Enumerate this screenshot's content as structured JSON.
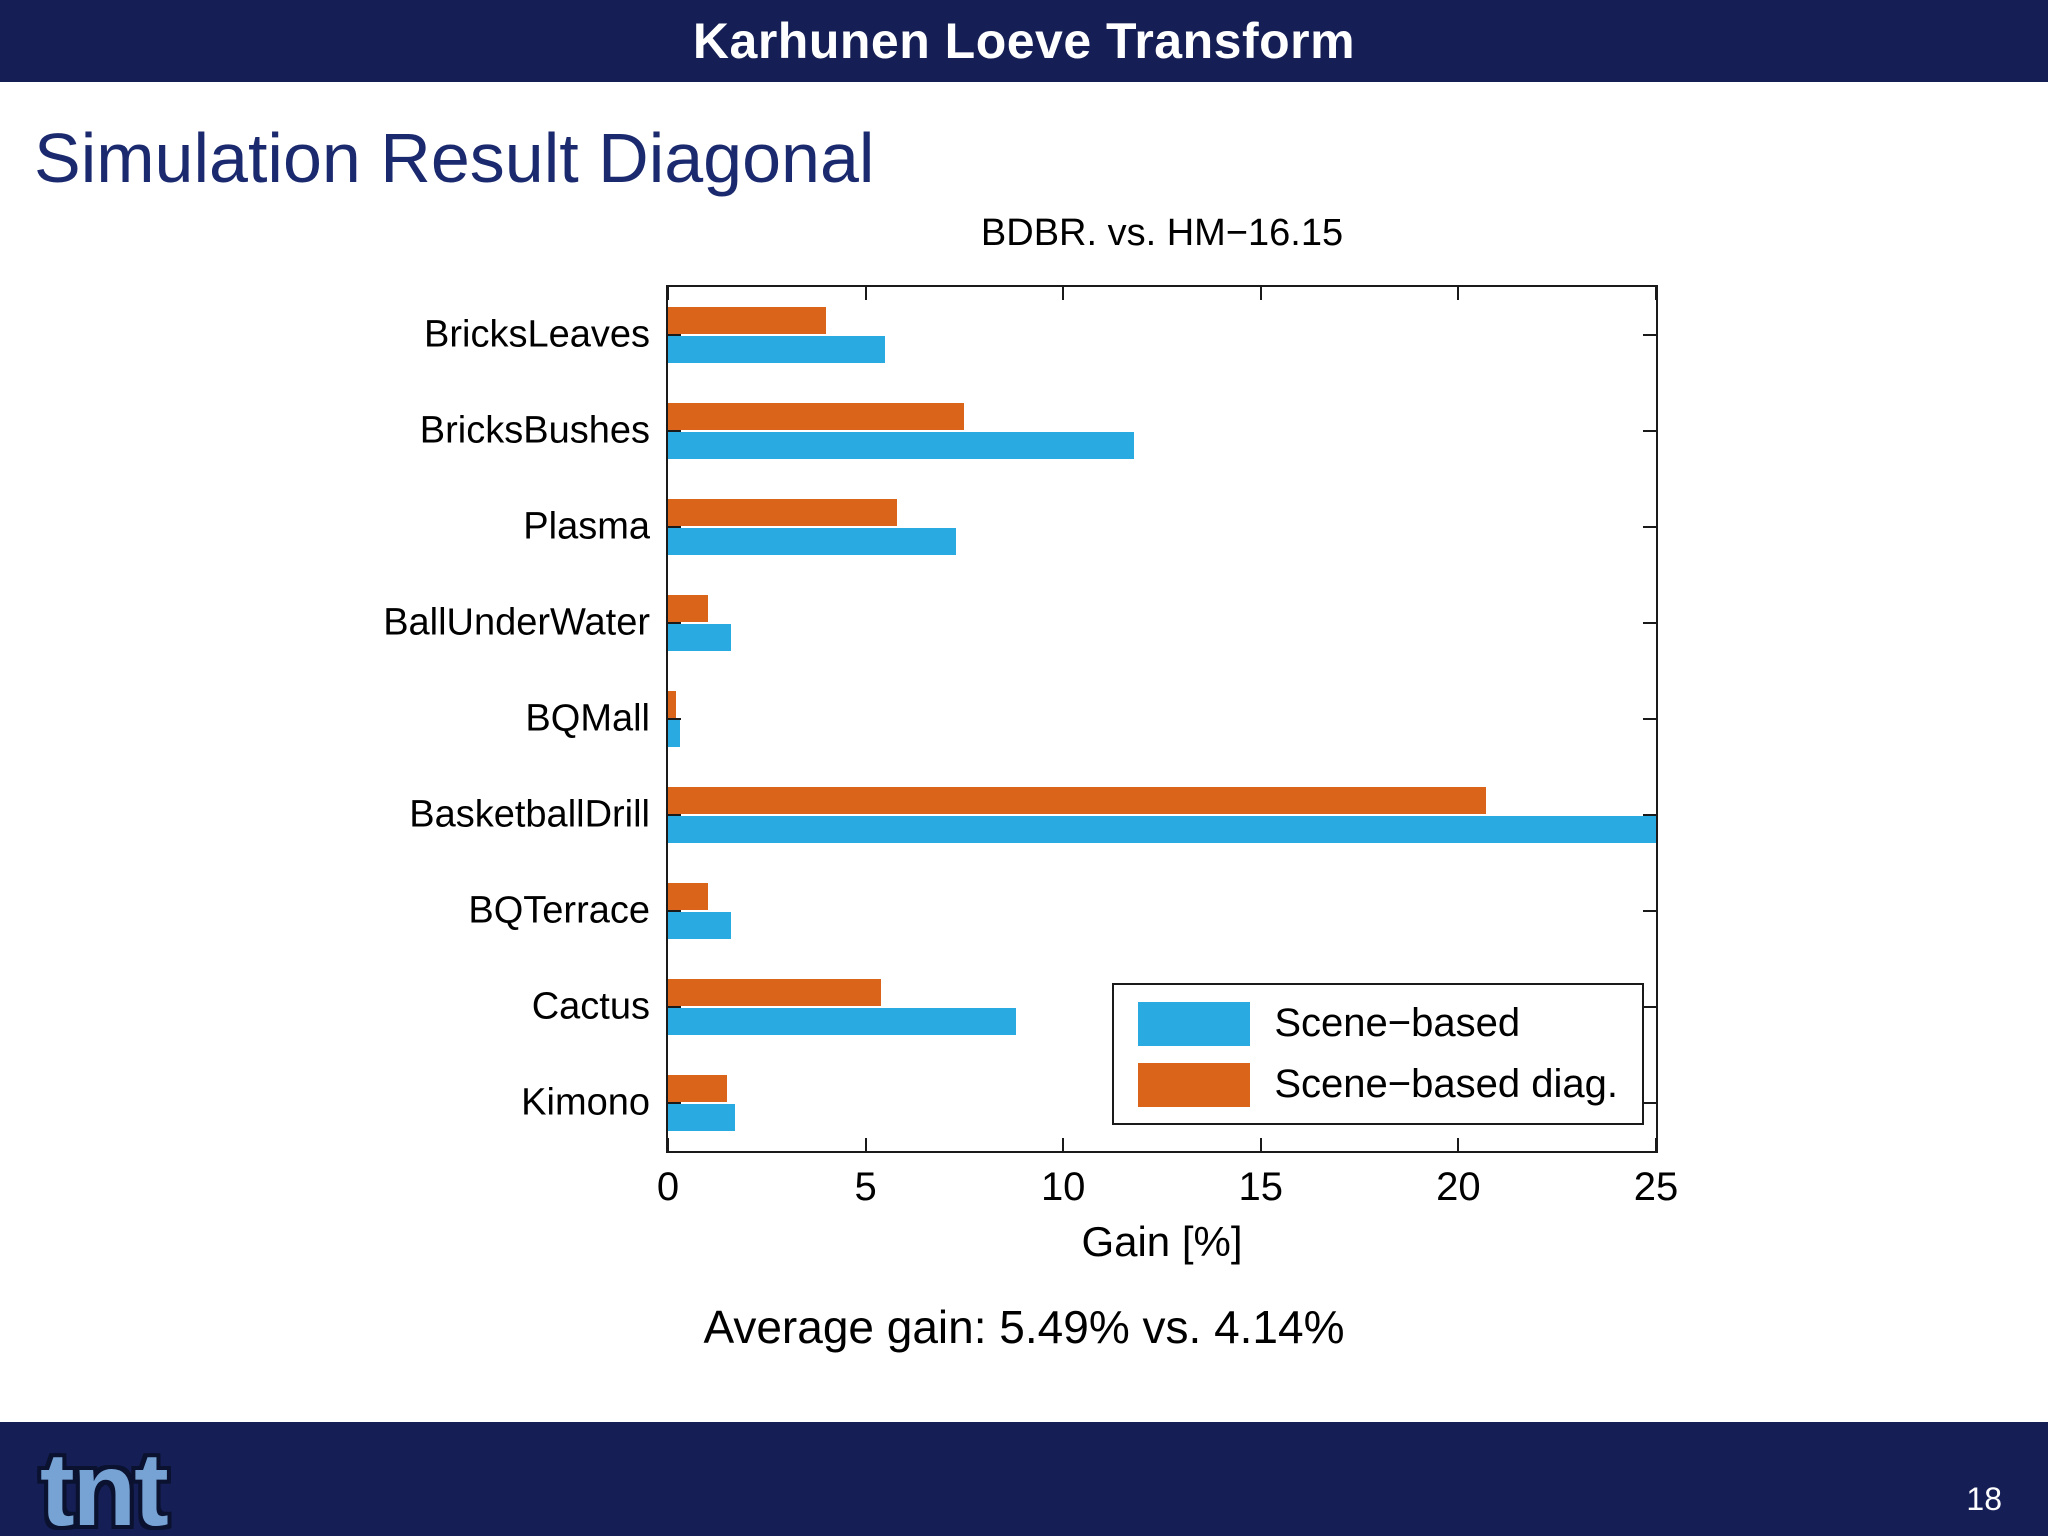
{
  "header": {
    "title": "Karhunen Loeve Transform"
  },
  "slide": {
    "title": "Simulation Result Diagonal",
    "average_note": "Average gain: 5.49% vs. 4.14%"
  },
  "chart_data": {
    "type": "bar",
    "orientation": "horizontal",
    "title": "BDBR. vs. HM−16.15",
    "xlabel": "Gain [%]",
    "xlim": [
      0,
      25
    ],
    "xticks": [
      0,
      5,
      10,
      15,
      20,
      25
    ],
    "grid": false,
    "legend_position": "bottom-right",
    "categories": [
      "BricksLeaves",
      "BricksBushes",
      "Plasma",
      "BallUnderWater",
      "BQMall",
      "BasketballDrill",
      "BQTerrace",
      "Cactus",
      "Kimono"
    ],
    "series": [
      {
        "name": "Scene−based",
        "color": "#29abe2",
        "values": [
          5.5,
          11.8,
          7.3,
          1.6,
          0.3,
          25.0,
          1.6,
          8.8,
          1.7
        ]
      },
      {
        "name": "Scene−based diag.",
        "color": "#d9641a",
        "values": [
          4.0,
          7.5,
          5.8,
          1.0,
          0.2,
          20.7,
          1.0,
          5.4,
          1.5
        ]
      }
    ]
  },
  "footer": {
    "logo": "tnt",
    "page": "18"
  }
}
